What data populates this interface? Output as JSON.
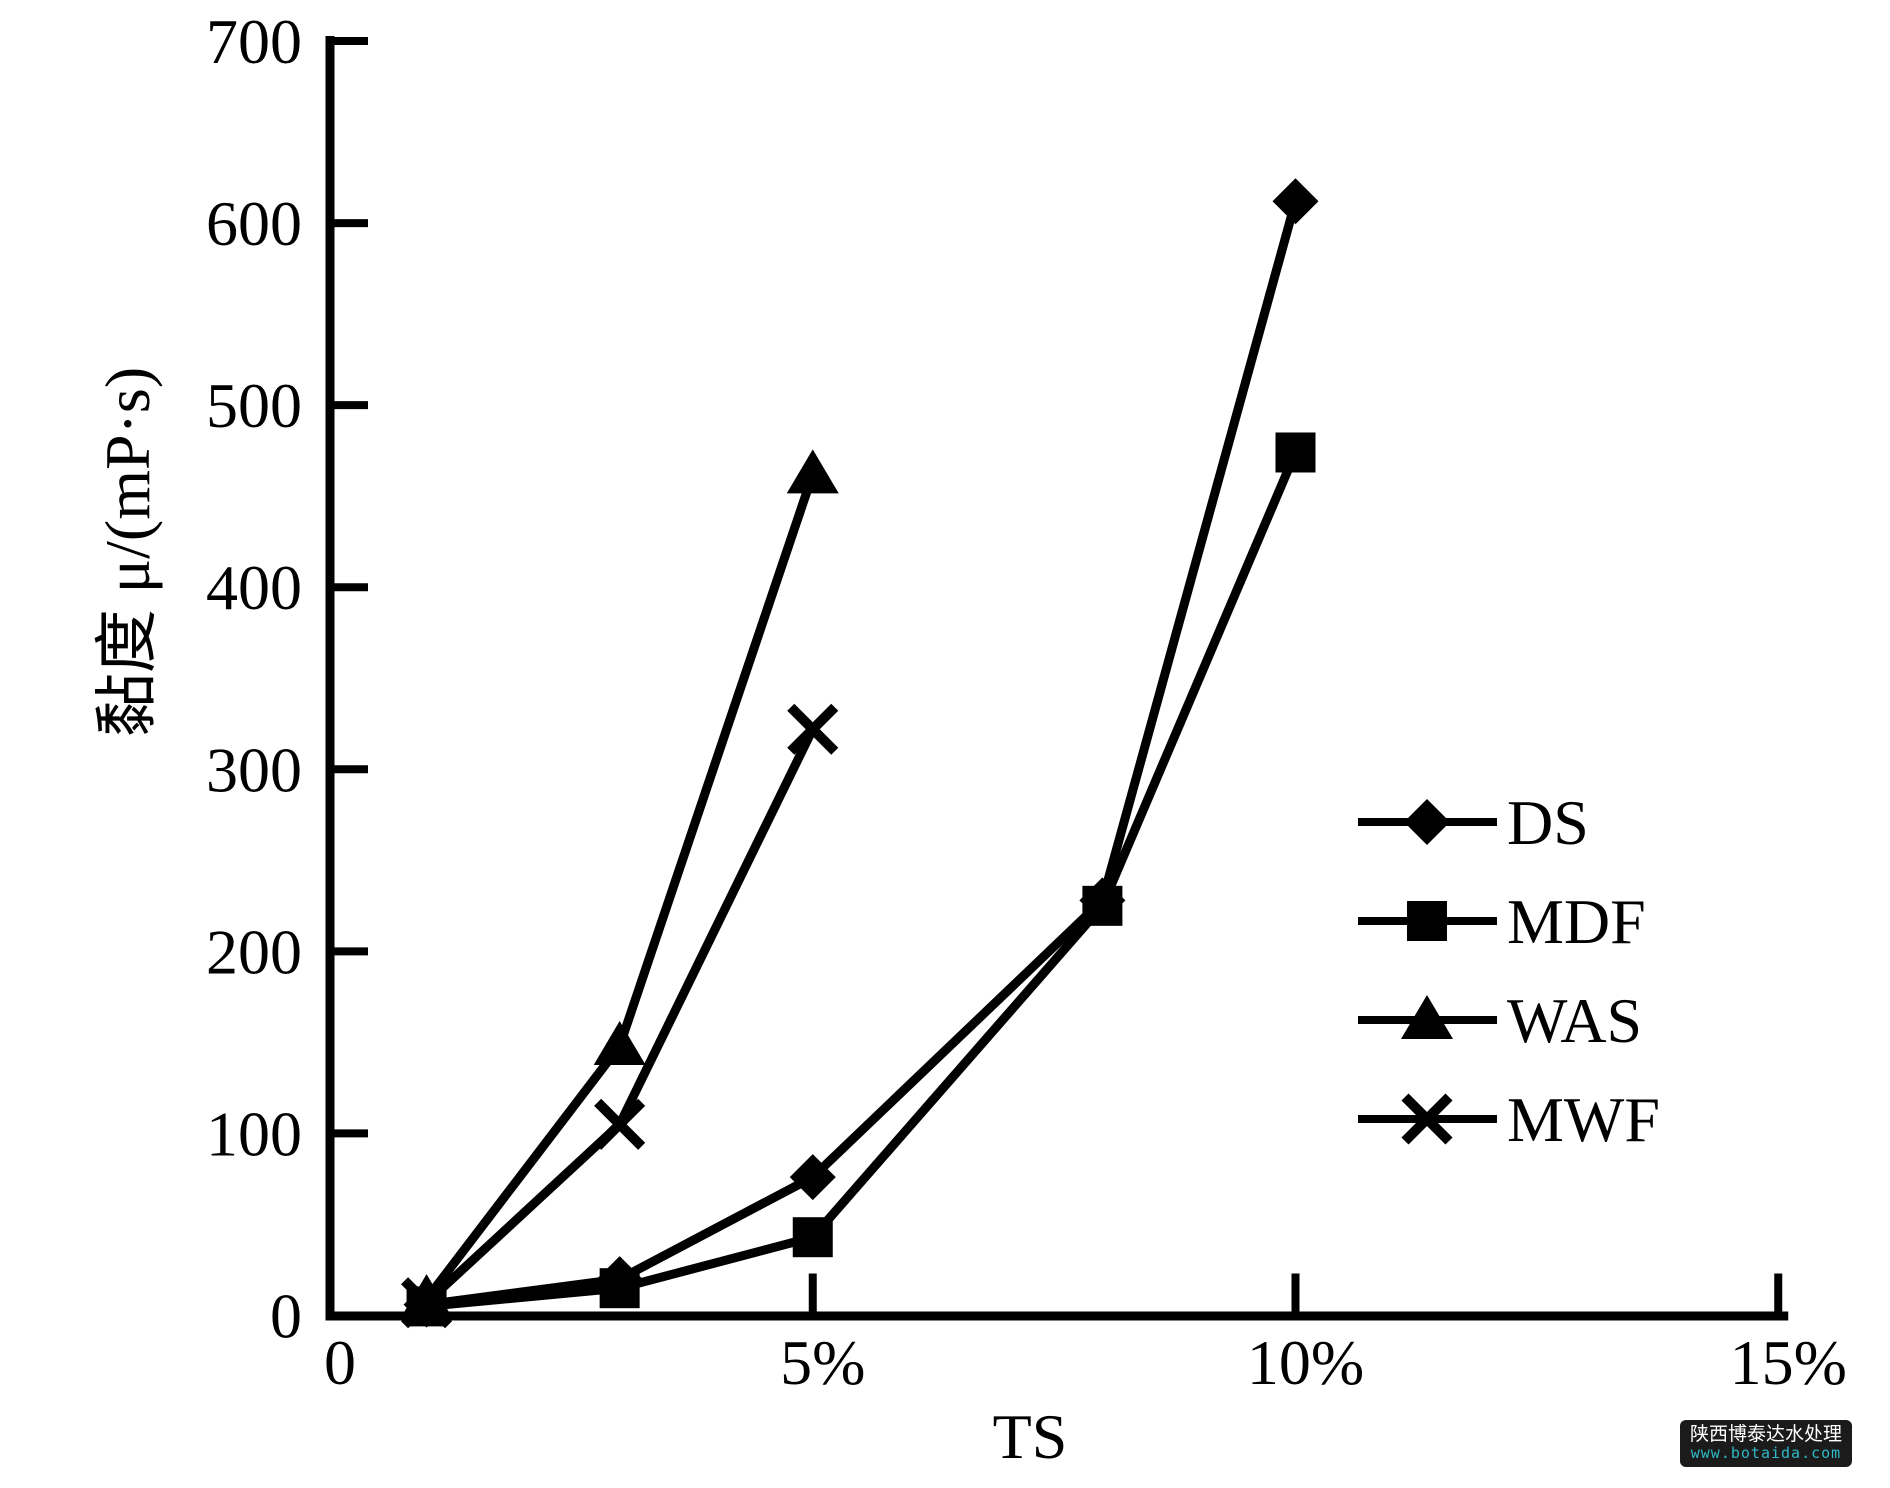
{
  "chart_data": {
    "type": "line",
    "title": "",
    "xlabel": "TS",
    "ylabel": "黏度 μ/(mP·s)",
    "xlim": [
      0,
      15
    ],
    "ylim": [
      0,
      700
    ],
    "grid": false,
    "legend_position": "right-middle",
    "x_ticks": [
      {
        "value": 0,
        "label": "0"
      },
      {
        "value": 5,
        "label": "5%"
      },
      {
        "value": 10,
        "label": "10%"
      },
      {
        "value": 15,
        "label": "15%"
      }
    ],
    "y_ticks": [
      {
        "value": 0,
        "label": "0"
      },
      {
        "value": 100,
        "label": "100"
      },
      {
        "value": 200,
        "label": "200"
      },
      {
        "value": 300,
        "label": "300"
      },
      {
        "value": 400,
        "label": "400"
      },
      {
        "value": 500,
        "label": "500"
      },
      {
        "value": 600,
        "label": "600"
      },
      {
        "value": 700,
        "label": "700"
      }
    ],
    "series": [
      {
        "name": "DS",
        "marker": "diamond",
        "color": "#000000",
        "x": [
          1,
          3,
          5,
          8,
          10
        ],
        "y": [
          6,
          20,
          76,
          228,
          612
        ]
      },
      {
        "name": "MDF",
        "marker": "square",
        "color": "#000000",
        "x": [
          1,
          3,
          5,
          8,
          10
        ],
        "y": [
          5,
          15,
          43,
          225,
          474
        ]
      },
      {
        "name": "WAS",
        "marker": "triangle",
        "color": "#000000",
        "x": [
          1,
          3,
          5
        ],
        "y": [
          9,
          148,
          462
        ]
      },
      {
        "name": "MWF",
        "marker": "x-cross",
        "color": "#000000",
        "x": [
          1,
          3,
          5
        ],
        "y": [
          7,
          105,
          322
        ]
      }
    ]
  },
  "watermark": {
    "company": "陕西博泰达水处理",
    "url": "www.botaida.com",
    "background": "#1b1b1b",
    "company_color": "#ffffff",
    "url_color": "#2fb8c6"
  }
}
